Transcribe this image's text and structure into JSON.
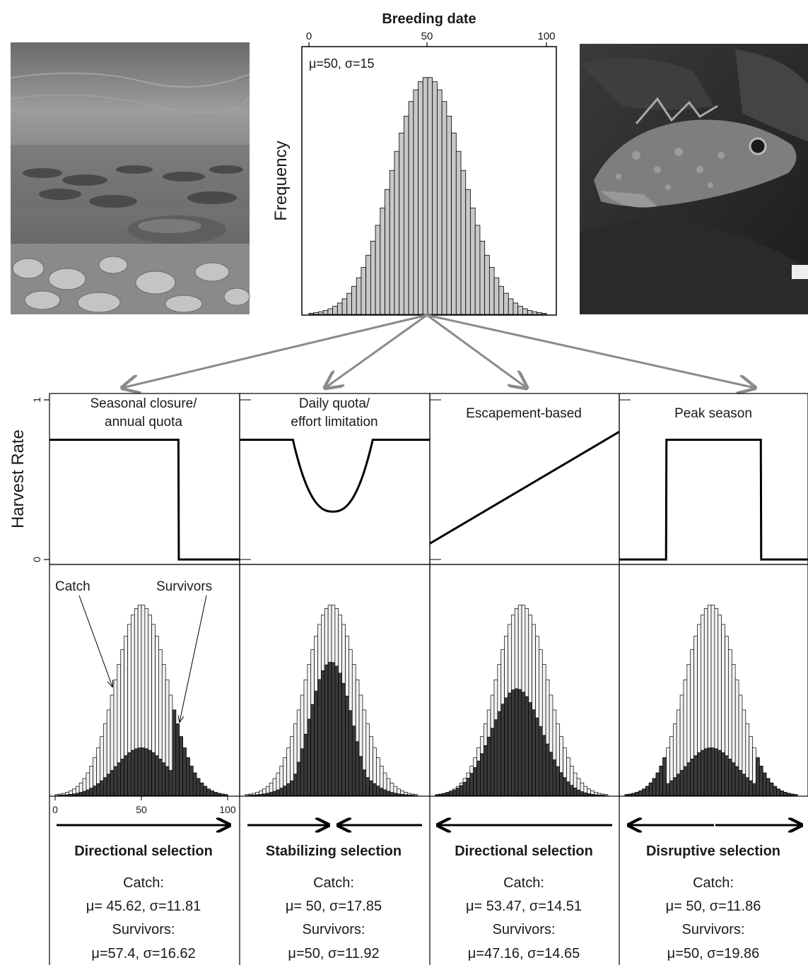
{
  "top_histogram": {
    "title": "Breeding date",
    "xticks": [
      "0",
      "50",
      "100"
    ],
    "ylabel": "Frequency",
    "annotation": "μ=50, σ=15"
  },
  "harvest_panel": {
    "ylabel": "Harvest Rate",
    "yticks": [
      "1",
      "0"
    ],
    "panels": [
      {
        "title_line1": "Seasonal closure/",
        "title_line2": "annual quota"
      },
      {
        "title_line1": "Daily quota/",
        "title_line2": "effort limitation"
      },
      {
        "title_line1": "Escapement-based",
        "title_line2": ""
      },
      {
        "title_line1": "Peak season",
        "title_line2": ""
      }
    ]
  },
  "distribution_panel": {
    "catch_label": "Catch",
    "survivors_label": "Survivors",
    "xticks": [
      "0",
      "50",
      "100"
    ]
  },
  "selection": [
    {
      "type": "Directional selection",
      "catch_label": "Catch:",
      "catch_stats": "μ= 45.62, σ=11.81",
      "survivors_label": "Survivors:",
      "survivors_stats": "μ=57.4, σ=16.62"
    },
    {
      "type": "Stabilizing selection",
      "catch_label": "Catch:",
      "catch_stats": "μ= 50, σ=17.85",
      "survivors_label": "Survivors:",
      "survivors_stats": "μ=50, σ=11.92"
    },
    {
      "type": "Directional selection",
      "catch_label": "Catch:",
      "catch_stats": "μ= 53.47, σ=14.51",
      "survivors_label": "Survivors:",
      "survivors_stats": "μ=47.16, σ=14.65"
    },
    {
      "type": "Disruptive selection",
      "catch_label": "Catch:",
      "catch_stats": "μ= 50, σ=11.86",
      "survivors_label": "Survivors:",
      "survivors_stats": "μ=50, σ=19.86"
    }
  ],
  "chart_data": {
    "type": "bar",
    "x_range": [
      0,
      100
    ],
    "mean": 50,
    "sd": 15,
    "harvest_rules": [
      {
        "kind": "step-down",
        "rate_high": 0.75,
        "rate_low": 0,
        "switch_date": 68
      },
      {
        "kind": "u-shape",
        "rate_high": 0.75,
        "rate_min": 0.3,
        "dip_start": 28,
        "dip_end": 70
      },
      {
        "kind": "linear",
        "rate_at_0": 0.1,
        "rate_at_100": 0.8
      },
      {
        "kind": "window",
        "rate_high": 0.75,
        "rate_low": 0,
        "start": 25,
        "end": 75
      }
    ]
  }
}
